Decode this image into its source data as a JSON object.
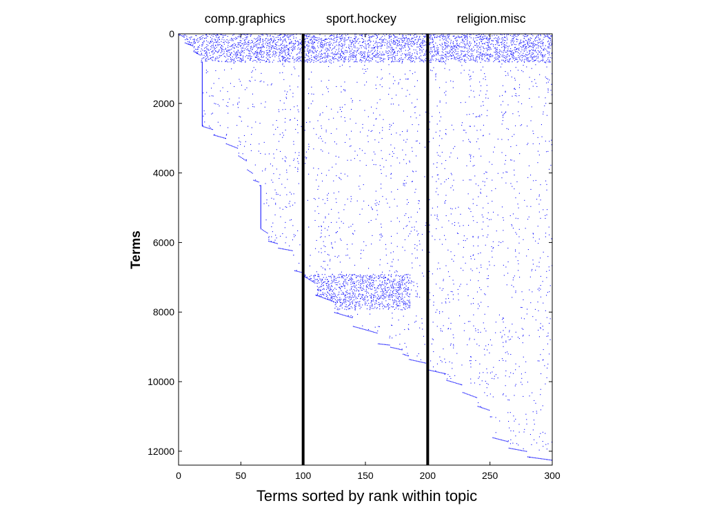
{
  "chart_data": {
    "type": "scatter",
    "description_style": "sparse matrix spy plot",
    "xlabel": "Terms sorted by rank within topic",
    "ylabel": "Terms",
    "xlim": [
      0,
      300
    ],
    "ylim": [
      0,
      12400
    ],
    "y_reversed": true,
    "x_ticks": [
      0,
      50,
      100,
      150,
      200,
      250,
      300
    ],
    "y_ticks": [
      0,
      2000,
      4000,
      6000,
      8000,
      10000,
      12000
    ],
    "grid": false,
    "point_color": "#0000ff",
    "divider_color": "#000000",
    "topic_dividers": [
      100,
      200
    ],
    "topics": [
      {
        "name": "comp.graphics",
        "x_range": [
          0,
          100
        ]
      },
      {
        "name": "sport.hockey",
        "x_range": [
          100,
          200
        ]
      },
      {
        "name": "religion.misc",
        "x_range": [
          200,
          300
        ]
      }
    ],
    "staircase_boundary": [
      {
        "x": 0,
        "y": 0
      },
      {
        "x": 5,
        "y": 250
      },
      {
        "x": 12,
        "y": 500
      },
      {
        "x": 18,
        "y": 800
      },
      {
        "x": 19,
        "y": 2650
      },
      {
        "x": 28,
        "y": 2900
      },
      {
        "x": 38,
        "y": 3150
      },
      {
        "x": 48,
        "y": 3500
      },
      {
        "x": 55,
        "y": 3900
      },
      {
        "x": 60,
        "y": 4200
      },
      {
        "x": 65,
        "y": 4350
      },
      {
        "x": 66,
        "y": 5600
      },
      {
        "x": 72,
        "y": 5950
      },
      {
        "x": 80,
        "y": 6150
      },
      {
        "x": 92,
        "y": 6350
      },
      {
        "x": 93,
        "y": 6800
      },
      {
        "x": 100,
        "y": 6950
      },
      {
        "x": 110,
        "y": 7500
      },
      {
        "x": 125,
        "y": 8000
      },
      {
        "x": 140,
        "y": 8400
      },
      {
        "x": 160,
        "y": 8900
      },
      {
        "x": 170,
        "y": 9000
      },
      {
        "x": 180,
        "y": 9200
      },
      {
        "x": 185,
        "y": 9350
      },
      {
        "x": 200,
        "y": 9650
      },
      {
        "x": 215,
        "y": 9950
      },
      {
        "x": 228,
        "y": 10300
      },
      {
        "x": 240,
        "y": 10700
      },
      {
        "x": 250,
        "y": 11000
      },
      {
        "x": 252,
        "y": 11600
      },
      {
        "x": 265,
        "y": 11900
      },
      {
        "x": 280,
        "y": 12150
      },
      {
        "x": 300,
        "y": 12400
      }
    ],
    "dense_bands": [
      {
        "y_range": [
          0,
          800
        ],
        "x_range": [
          0,
          300
        ]
      },
      {
        "y_range": [
          6900,
          7900
        ],
        "x_range": [
          100,
          185
        ]
      }
    ]
  }
}
